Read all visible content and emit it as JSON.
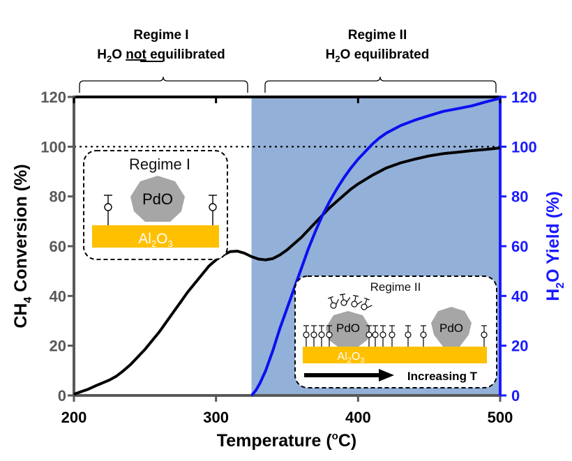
{
  "chart_data": {
    "type": "line",
    "xlabel": "Temperature",
    "xunit_open": "(",
    "xunit_sup": "o",
    "xunit_close": "C)",
    "ylabel_left_pre": "CH",
    "ylabel_left_sub": "4",
    "ylabel_left_post": " Conversion (%)",
    "ylabel_right_pre": "H",
    "ylabel_right_sub": "2",
    "ylabel_right_post": "O Yield (%)",
    "xlim": [
      200,
      500
    ],
    "ylim": [
      0,
      120
    ],
    "xticks": [
      "200",
      "300",
      "400",
      "500"
    ],
    "yticks_left": [
      "0",
      "20",
      "40",
      "60",
      "80",
      "100",
      "120"
    ],
    "yticks_right": [
      "0",
      "20",
      "40",
      "60",
      "80",
      "100",
      "120"
    ],
    "reference_line_y": 100,
    "shaded_region_x": [
      325,
      500
    ],
    "colors": {
      "ch4": "#000000",
      "h2o": "#0b10f0",
      "shade": "#93b0d8",
      "right_axis": "#1a1aff",
      "support": "#ffc000",
      "pdo": "#a6a6a6"
    },
    "series": [
      {
        "x": [
          200,
          205,
          210,
          215,
          220,
          225,
          230,
          235,
          240,
          245,
          250,
          255,
          260,
          265,
          270,
          275,
          280,
          285,
          290,
          295,
          300,
          305,
          310,
          315,
          320,
          325,
          330,
          335,
          340,
          345,
          350,
          355,
          360,
          365,
          370,
          375,
          380,
          385,
          390,
          395,
          400,
          410,
          420,
          430,
          440,
          450,
          460,
          470,
          480,
          490,
          500
        ],
        "values": [
          0.5,
          1.5,
          2.5,
          3.8,
          5,
          6.2,
          7.8,
          10,
          12.5,
          15.5,
          18.5,
          22,
          25.5,
          29.5,
          33.5,
          37.5,
          41.5,
          45,
          48.5,
          52,
          54.5,
          56.5,
          57.8,
          58,
          57.2,
          55.8,
          54.8,
          54.5,
          55,
          56.5,
          58.5,
          61,
          63.5,
          66.5,
          69.5,
          72.5,
          75.5,
          78,
          80.5,
          83,
          85,
          88.5,
          91.5,
          93.5,
          95,
          96.3,
          97.2,
          97.8,
          98.4,
          98.9,
          99.5
        ]
      },
      {
        "x": [
          325,
          328,
          331,
          335,
          340,
          345,
          350,
          355,
          360,
          365,
          370,
          375,
          380,
          385,
          390,
          395,
          400,
          405,
          410,
          415,
          420,
          430,
          440,
          450,
          460,
          470,
          480,
          490,
          500
        ],
        "values": [
          0,
          2,
          5,
          10,
          18,
          27,
          35,
          43,
          51,
          59,
          66,
          72.5,
          78,
          83,
          87.5,
          91.5,
          95,
          98,
          101,
          103.5,
          105.5,
          108.5,
          110.7,
          112.5,
          114.2,
          115.3,
          116.4,
          118,
          119.5
        ]
      }
    ]
  },
  "regimes": [
    {
      "title": "Regime I",
      "sub_pre": "H",
      "sub_sub": "2",
      "sub_o": "O ",
      "sub_emph": "not",
      "sub_post": " equilibrated"
    },
    {
      "title": "Regime II",
      "sub_pre": "H",
      "sub_sub": "2",
      "sub_o": "O equilibrated"
    }
  ],
  "inset1": {
    "title": "Regime I",
    "particle": "PdO",
    "support_pre": "Al",
    "support_sub1": "2",
    "support_mid": "O",
    "support_sub2": "3"
  },
  "inset2": {
    "title": "Regime II",
    "particle_a": "PdO",
    "particle_b": "PdO",
    "support_pre": "Al",
    "support_sub1": "2",
    "support_mid": "O",
    "support_sub2": "3",
    "arrow_label": "Increasing T"
  }
}
